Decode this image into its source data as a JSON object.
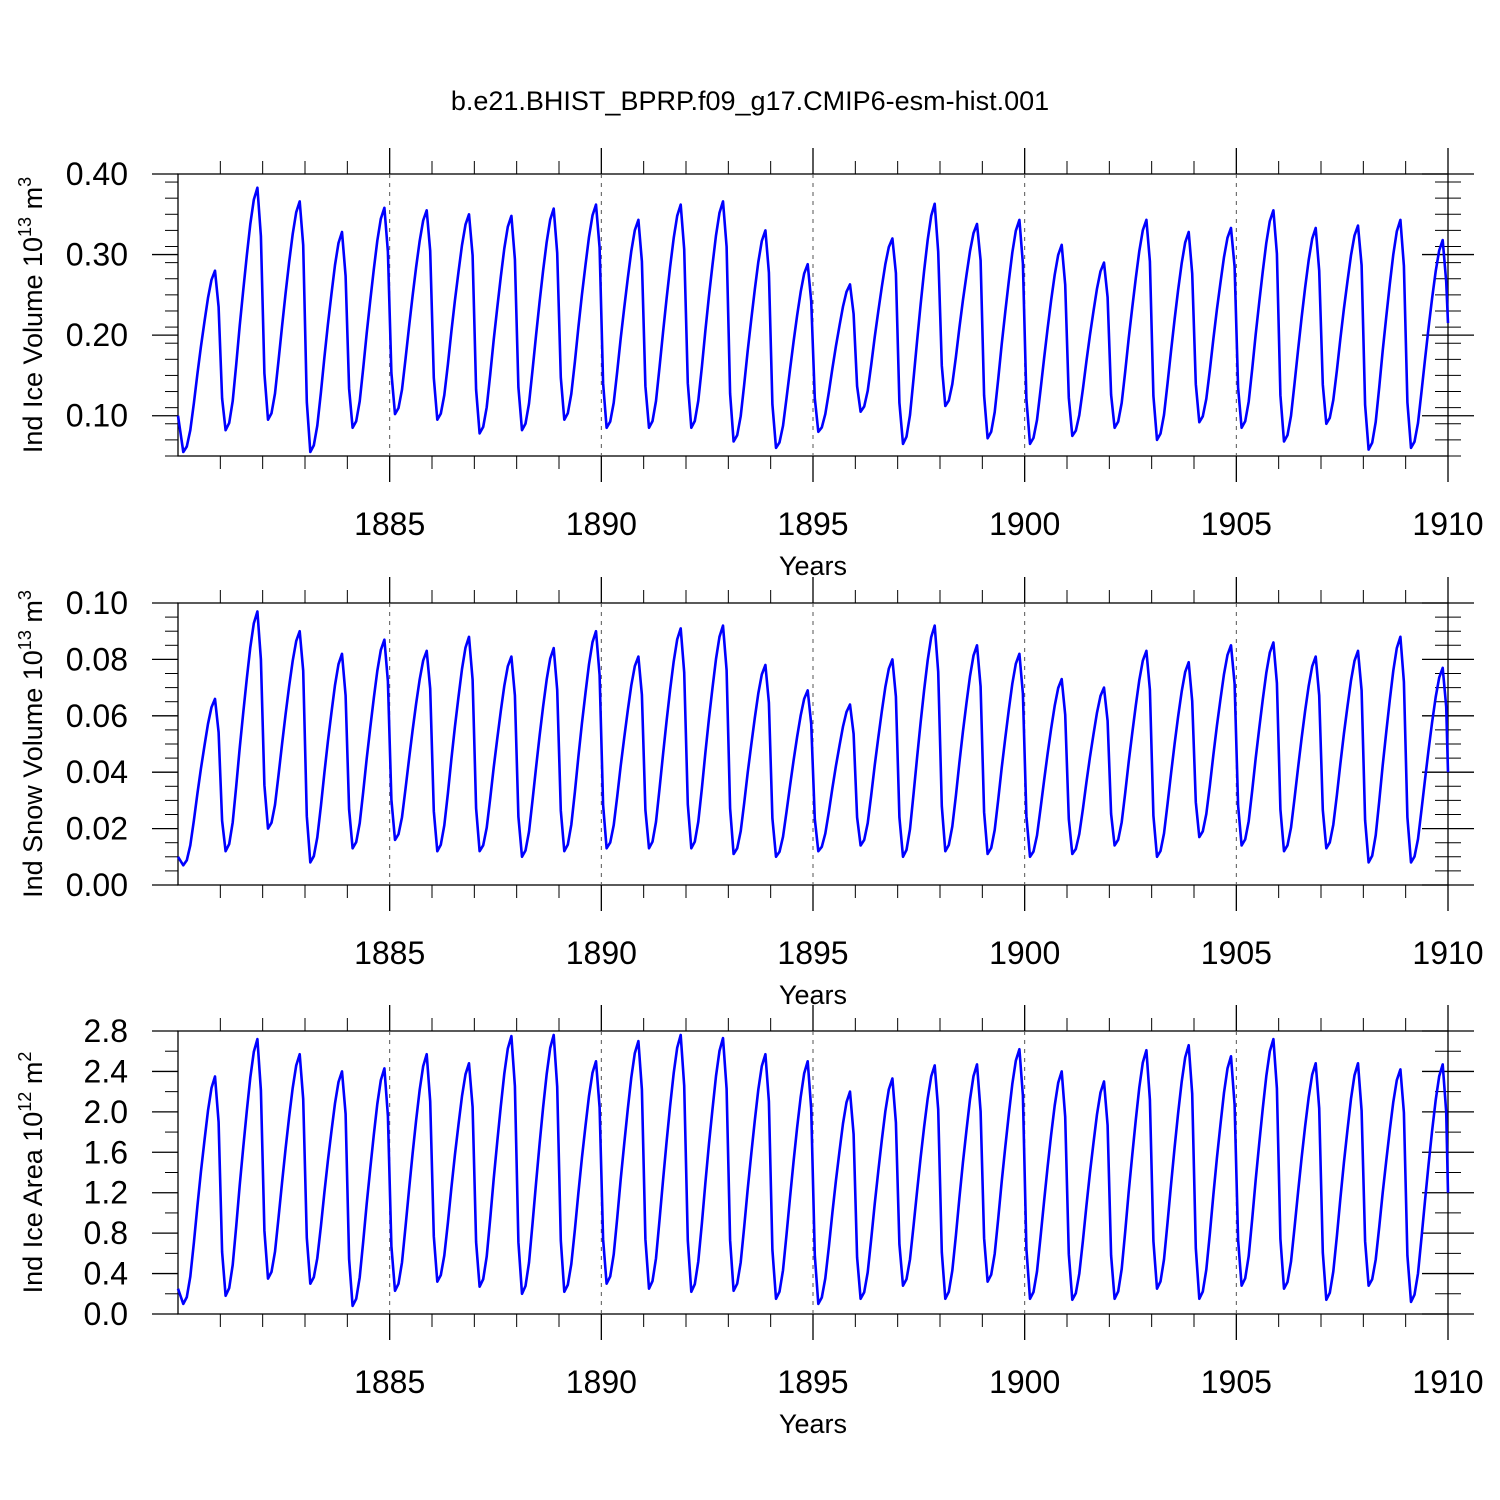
{
  "figure_title": "b.e21.BHIST_BPRP.f09_g17.CMIP6-esm-hist.001",
  "colors": {
    "series": "#0000ff",
    "axes": "#000000",
    "grid": "#555555"
  },
  "chart_data": [
    {
      "type": "line",
      "id": "ice-volume",
      "title": "b.e21.BHIST_BPRP.f09_g17.CMIP6-esm-hist.001",
      "xlabel": "Years",
      "ylabel_main": "Ind Ice Volume 10",
      "ylabel_exp": "13",
      "ylabel_unit": "m",
      "ylabel_unit_exp": "3",
      "xlim": [
        1880,
        1910
      ],
      "ylim": [
        0.05,
        0.4
      ],
      "yticks": [
        0.1,
        0.2,
        0.3,
        0.4
      ],
      "ytick_labels": [
        "0.10",
        "0.20",
        "0.30",
        "0.40"
      ],
      "yminor_step": 0.02,
      "xticks": [
        1885,
        1890,
        1895,
        1900,
        1905,
        1910
      ],
      "xtick_labels": [
        "1885",
        "1890",
        "1895",
        "1900",
        "1905",
        "1910"
      ],
      "annual_min": [
        0.055,
        0.082,
        0.095,
        0.055,
        0.085,
        0.102,
        0.095,
        0.078,
        0.082,
        0.095,
        0.085,
        0.085,
        0.085,
        0.068,
        0.06,
        0.08,
        0.105,
        0.065,
        0.112,
        0.072,
        0.065,
        0.075,
        0.085,
        0.07,
        0.092,
        0.085,
        0.068,
        0.09,
        0.058,
        0.06
      ],
      "annual_max": [
        0.28,
        0.383,
        0.366,
        0.328,
        0.358,
        0.355,
        0.35,
        0.348,
        0.357,
        0.362,
        0.343,
        0.362,
        0.366,
        0.33,
        0.288,
        0.263,
        0.32,
        0.363,
        0.338,
        0.343,
        0.312,
        0.29,
        0.343,
        0.328,
        0.333,
        0.355,
        0.333,
        0.336,
        0.343,
        0.318
      ],
      "end_value": 0.215
    },
    {
      "type": "line",
      "id": "snow-volume",
      "title": "",
      "xlabel": "Years",
      "ylabel_main": "Ind Snow Volume 10",
      "ylabel_exp": "13",
      "ylabel_unit": "m",
      "ylabel_unit_exp": "3",
      "xlim": [
        1880,
        1910
      ],
      "ylim": [
        0.0,
        0.1
      ],
      "yticks": [
        0.0,
        0.02,
        0.04,
        0.06,
        0.08,
        0.1
      ],
      "ytick_labels": [
        "0.00",
        "0.02",
        "0.04",
        "0.06",
        "0.08",
        "0.10"
      ],
      "yminor_step": 0.005,
      "xticks": [
        1885,
        1890,
        1895,
        1900,
        1905,
        1910
      ],
      "xtick_labels": [
        "1885",
        "1890",
        "1895",
        "1900",
        "1905",
        "1910"
      ],
      "annual_min": [
        0.007,
        0.012,
        0.02,
        0.008,
        0.013,
        0.016,
        0.012,
        0.012,
        0.01,
        0.012,
        0.013,
        0.013,
        0.013,
        0.011,
        0.01,
        0.012,
        0.014,
        0.01,
        0.012,
        0.011,
        0.01,
        0.011,
        0.014,
        0.01,
        0.017,
        0.014,
        0.012,
        0.013,
        0.008,
        0.008
      ],
      "annual_max": [
        0.066,
        0.097,
        0.09,
        0.082,
        0.087,
        0.083,
        0.088,
        0.081,
        0.084,
        0.09,
        0.081,
        0.091,
        0.092,
        0.078,
        0.069,
        0.064,
        0.08,
        0.092,
        0.085,
        0.082,
        0.073,
        0.07,
        0.083,
        0.079,
        0.085,
        0.086,
        0.081,
        0.083,
        0.088,
        0.077
      ],
      "end_value": 0.04
    },
    {
      "type": "line",
      "id": "ice-area",
      "title": "",
      "xlabel": "Years",
      "ylabel_main": "Ind Ice Area 10",
      "ylabel_exp": "12",
      "ylabel_unit": "m",
      "ylabel_unit_exp": "2",
      "xlim": [
        1880,
        1910
      ],
      "ylim": [
        0.0,
        2.8
      ],
      "yticks": [
        0.0,
        0.4,
        0.8,
        1.2,
        1.6,
        2.0,
        2.4,
        2.8
      ],
      "ytick_labels": [
        "0.0",
        "0.4",
        "0.8",
        "1.2",
        "1.6",
        "2.0",
        "2.4",
        "2.8"
      ],
      "yminor_step": 0.2,
      "xticks": [
        1885,
        1890,
        1895,
        1900,
        1905,
        1910
      ],
      "xtick_labels": [
        "1885",
        "1890",
        "1895",
        "1900",
        "1905",
        "1910"
      ],
      "annual_min": [
        0.1,
        0.18,
        0.35,
        0.3,
        0.08,
        0.23,
        0.32,
        0.27,
        0.2,
        0.22,
        0.3,
        0.25,
        0.22,
        0.23,
        0.15,
        0.1,
        0.15,
        0.28,
        0.15,
        0.32,
        0.15,
        0.14,
        0.15,
        0.25,
        0.15,
        0.28,
        0.25,
        0.14,
        0.28,
        0.12
      ],
      "annual_max": [
        2.35,
        2.72,
        2.57,
        2.4,
        2.43,
        2.57,
        2.48,
        2.75,
        2.76,
        2.5,
        2.7,
        2.76,
        2.73,
        2.57,
        2.5,
        2.2,
        2.33,
        2.46,
        2.47,
        2.62,
        2.4,
        2.3,
        2.61,
        2.66,
        2.55,
        2.72,
        2.48,
        2.48,
        2.42,
        2.47
      ],
      "end_value": 1.2
    }
  ]
}
